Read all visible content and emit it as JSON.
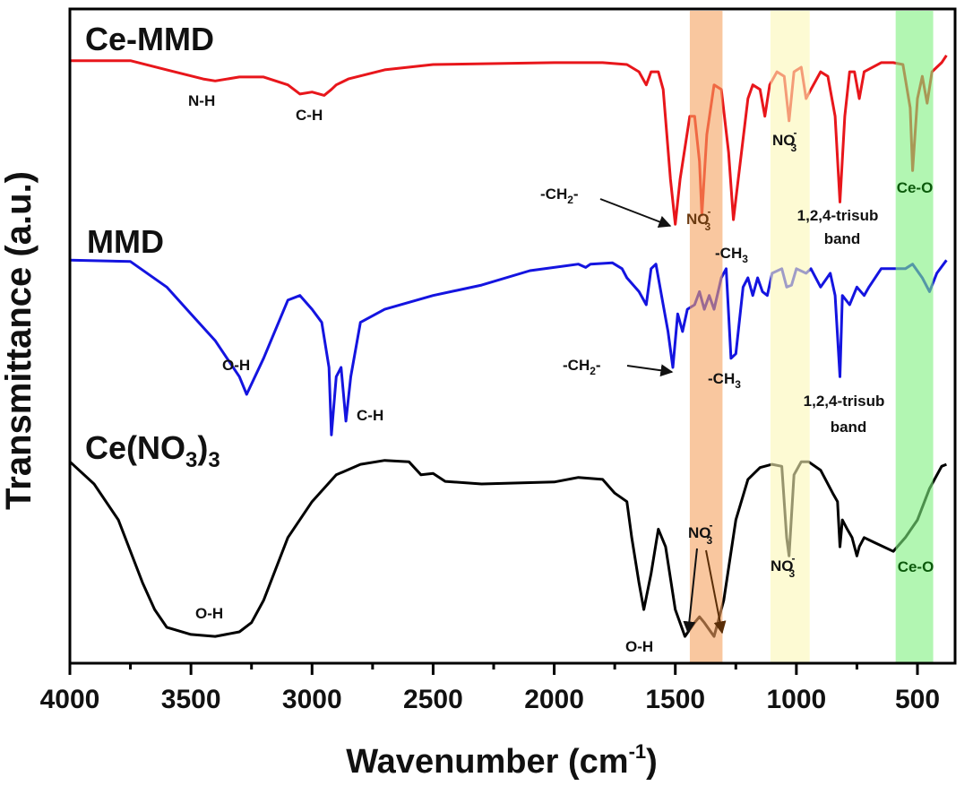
{
  "chart_data": {
    "type": "line",
    "title": "",
    "xlabel": {
      "text": "Wavenumber (cm",
      "sup": "-1",
      "close": ")"
    },
    "ylabel": "Transmittance (a.u.)",
    "xlim": [
      4000,
      350
    ],
    "x_reversed": true,
    "y_ticks_shown": false,
    "grid": false,
    "x_ticks": [
      "4000",
      "3500",
      "3000",
      "2500",
      "2000",
      "1500",
      "1000",
      "500"
    ],
    "highlight_bands": [
      {
        "range": [
          1440,
          1305
        ],
        "color": "#f5a25f"
      },
      {
        "range": [
          1107,
          945
        ],
        "color": "#fbf7b5"
      },
      {
        "range": [
          590,
          435
        ],
        "color": "#7ef07e"
      }
    ],
    "series": [
      {
        "name": "Ce-MMD",
        "color": "#e8161b",
        "points": [
          [
            4000,
            92.1
          ],
          [
            3750,
            92.1
          ],
          [
            3600,
            90.7
          ],
          [
            3450,
            89.3
          ],
          [
            3400,
            89.0
          ],
          [
            3300,
            89.6
          ],
          [
            3200,
            89.6
          ],
          [
            3100,
            88.4
          ],
          [
            3050,
            87.0
          ],
          [
            3000,
            87.3
          ],
          [
            2950,
            86.8
          ],
          [
            2920,
            87.7
          ],
          [
            2900,
            88.4
          ],
          [
            2850,
            89.3
          ],
          [
            2700,
            90.7
          ],
          [
            2500,
            91.5
          ],
          [
            2000,
            91.8
          ],
          [
            1800,
            91.8
          ],
          [
            1700,
            91.5
          ],
          [
            1650,
            90.4
          ],
          [
            1620,
            88.4
          ],
          [
            1600,
            90.4
          ],
          [
            1570,
            90.4
          ],
          [
            1550,
            87.7
          ],
          [
            1520,
            74.0
          ],
          [
            1500,
            67.1
          ],
          [
            1480,
            74.0
          ],
          [
            1440,
            83.6
          ],
          [
            1420,
            83.6
          ],
          [
            1400,
            76.7
          ],
          [
            1390,
            68.5
          ],
          [
            1370,
            80.8
          ],
          [
            1340,
            88.4
          ],
          [
            1310,
            87.7
          ],
          [
            1280,
            78.1
          ],
          [
            1260,
            67.8
          ],
          [
            1240,
            74.0
          ],
          [
            1200,
            86.3
          ],
          [
            1180,
            88.4
          ],
          [
            1150,
            87.7
          ],
          [
            1130,
            83.6
          ],
          [
            1110,
            88.4
          ],
          [
            1080,
            90.4
          ],
          [
            1050,
            89.7
          ],
          [
            1030,
            82.9
          ],
          [
            1010,
            90.4
          ],
          [
            980,
            91.1
          ],
          [
            960,
            86.3
          ],
          [
            940,
            87.7
          ],
          [
            900,
            90.4
          ],
          [
            870,
            89.7
          ],
          [
            840,
            83.6
          ],
          [
            820,
            70.5
          ],
          [
            800,
            83.6
          ],
          [
            780,
            90.4
          ],
          [
            760,
            90.4
          ],
          [
            740,
            86.3
          ],
          [
            720,
            90.4
          ],
          [
            650,
            91.8
          ],
          [
            600,
            91.8
          ],
          [
            560,
            91.5
          ],
          [
            530,
            84.9
          ],
          [
            520,
            75.3
          ],
          [
            500,
            86.3
          ],
          [
            480,
            89.7
          ],
          [
            460,
            85.6
          ],
          [
            440,
            90.4
          ],
          [
            400,
            91.8
          ],
          [
            380,
            92.9
          ]
        ]
      },
      {
        "name": "MMD",
        "color": "#1414e0",
        "points": [
          [
            4000,
            61.6
          ],
          [
            3750,
            61.4
          ],
          [
            3600,
            57.5
          ],
          [
            3500,
            53.4
          ],
          [
            3400,
            49.3
          ],
          [
            3300,
            43.8
          ],
          [
            3270,
            41.1
          ],
          [
            3200,
            46.6
          ],
          [
            3100,
            55.5
          ],
          [
            3050,
            56.2
          ],
          [
            3000,
            54.1
          ],
          [
            2960,
            52.1
          ],
          [
            2930,
            45.2
          ],
          [
            2920,
            34.9
          ],
          [
            2900,
            43.8
          ],
          [
            2880,
            45.2
          ],
          [
            2860,
            37.0
          ],
          [
            2840,
            43.8
          ],
          [
            2800,
            52.1
          ],
          [
            2700,
            54.1
          ],
          [
            2500,
            56.2
          ],
          [
            2300,
            57.8
          ],
          [
            2100,
            60.0
          ],
          [
            1900,
            61.0
          ],
          [
            1870,
            60.5
          ],
          [
            1850,
            61.0
          ],
          [
            1760,
            61.2
          ],
          [
            1720,
            60.3
          ],
          [
            1700,
            58.9
          ],
          [
            1650,
            56.8
          ],
          [
            1620,
            54.8
          ],
          [
            1600,
            60.3
          ],
          [
            1580,
            61.0
          ],
          [
            1550,
            54.8
          ],
          [
            1530,
            50.7
          ],
          [
            1510,
            45.2
          ],
          [
            1490,
            53.4
          ],
          [
            1470,
            50.7
          ],
          [
            1450,
            54.1
          ],
          [
            1420,
            54.8
          ],
          [
            1400,
            56.8
          ],
          [
            1380,
            54.1
          ],
          [
            1360,
            56.2
          ],
          [
            1340,
            54.1
          ],
          [
            1310,
            58.9
          ],
          [
            1290,
            60.3
          ],
          [
            1270,
            46.6
          ],
          [
            1250,
            47.3
          ],
          [
            1220,
            57.5
          ],
          [
            1200,
            58.9
          ],
          [
            1180,
            56.2
          ],
          [
            1160,
            58.9
          ],
          [
            1140,
            56.8
          ],
          [
            1120,
            56.2
          ],
          [
            1100,
            59.6
          ],
          [
            1060,
            60.3
          ],
          [
            1040,
            57.5
          ],
          [
            1020,
            57.8
          ],
          [
            1000,
            60.3
          ],
          [
            960,
            59.6
          ],
          [
            940,
            60.3
          ],
          [
            900,
            57.5
          ],
          [
            860,
            59.6
          ],
          [
            840,
            56.2
          ],
          [
            820,
            43.8
          ],
          [
            810,
            56.2
          ],
          [
            780,
            54.8
          ],
          [
            750,
            57.5
          ],
          [
            720,
            56.2
          ],
          [
            700,
            57.5
          ],
          [
            650,
            60.3
          ],
          [
            600,
            60.3
          ],
          [
            550,
            60.3
          ],
          [
            520,
            61.0
          ],
          [
            480,
            58.9
          ],
          [
            450,
            56.8
          ],
          [
            420,
            59.6
          ],
          [
            380,
            61.6
          ]
        ]
      },
      {
        "name": "Ce(NO3)3",
        "color": "#000000",
        "points": [
          [
            4000,
            30.8
          ],
          [
            3900,
            27.4
          ],
          [
            3800,
            21.9
          ],
          [
            3700,
            12.3
          ],
          [
            3650,
            8.2
          ],
          [
            3600,
            5.5
          ],
          [
            3500,
            4.4
          ],
          [
            3400,
            4.1
          ],
          [
            3300,
            4.8
          ],
          [
            3250,
            6.2
          ],
          [
            3200,
            9.6
          ],
          [
            3100,
            19.2
          ],
          [
            3000,
            24.7
          ],
          [
            2900,
            28.8
          ],
          [
            2800,
            30.4
          ],
          [
            2700,
            31.0
          ],
          [
            2600,
            30.8
          ],
          [
            2550,
            28.8
          ],
          [
            2500,
            29.0
          ],
          [
            2450,
            27.8
          ],
          [
            2300,
            27.4
          ],
          [
            2000,
            27.7
          ],
          [
            1900,
            28.4
          ],
          [
            1800,
            28.1
          ],
          [
            1750,
            26.0
          ],
          [
            1700,
            24.7
          ],
          [
            1680,
            19.2
          ],
          [
            1650,
            12.3
          ],
          [
            1630,
            8.2
          ],
          [
            1600,
            13.7
          ],
          [
            1570,
            20.5
          ],
          [
            1540,
            17.8
          ],
          [
            1500,
            8.2
          ],
          [
            1460,
            4.1
          ],
          [
            1420,
            6.2
          ],
          [
            1400,
            7.1
          ],
          [
            1380,
            6.2
          ],
          [
            1340,
            4.1
          ],
          [
            1300,
            9.6
          ],
          [
            1250,
            21.9
          ],
          [
            1200,
            28.1
          ],
          [
            1150,
            29.9
          ],
          [
            1100,
            30.4
          ],
          [
            1060,
            30.1
          ],
          [
            1040,
            19.2
          ],
          [
            1030,
            16.4
          ],
          [
            1010,
            28.8
          ],
          [
            980,
            30.8
          ],
          [
            950,
            30.8
          ],
          [
            900,
            29.5
          ],
          [
            850,
            26.0
          ],
          [
            830,
            24.7
          ],
          [
            820,
            17.8
          ],
          [
            810,
            21.9
          ],
          [
            790,
            20.5
          ],
          [
            770,
            19.2
          ],
          [
            750,
            16.4
          ],
          [
            740,
            17.8
          ],
          [
            720,
            19.2
          ],
          [
            680,
            18.5
          ],
          [
            600,
            17.1
          ],
          [
            550,
            19.2
          ],
          [
            500,
            21.9
          ],
          [
            450,
            26.7
          ],
          [
            400,
            30.1
          ],
          [
            380,
            30.4
          ]
        ]
      }
    ],
    "series_labels": {
      "ce_mmd": "Ce-MMD",
      "mmd": "MMD",
      "ce_nitrate": {
        "base": "Ce(NO",
        "sub1": "3",
        "close": ")",
        "sub2": "3"
      }
    },
    "annotations": {
      "ce_mmd": {
        "nh": "N-H",
        "ch": "C-H",
        "ch2": {
          "base": "-CH",
          "sub": "2",
          "tail": "-"
        },
        "no3_band": {
          "base": "NO",
          "sub": "3",
          "sup": "-"
        },
        "ch3": {
          "base": "-CH",
          "sub": "3"
        },
        "no3_yellow": {
          "base": "NO",
          "sub": "3",
          "sup": "-"
        },
        "trisub": [
          "1,2,4-trisub",
          "band"
        ],
        "ceo": "Ce-O"
      },
      "mmd": {
        "oh": "O-H",
        "ch": "C-H",
        "ch2": {
          "base": "-CH",
          "sub": "2",
          "tail": "-"
        },
        "ch3": {
          "base": "-CH",
          "sub": "3"
        },
        "trisub": [
          "1,2,4-trisub",
          "band"
        ]
      },
      "ce_nitrate": {
        "oh1": "O-H",
        "oh2": "O-H",
        "no3_band": {
          "base": "NO",
          "sub": "3",
          "sup": "-"
        },
        "no3_yellow": {
          "base": "NO",
          "sub": "3",
          "sup": "-"
        },
        "ceo": "Ce-O"
      }
    },
    "annotation_colors": {
      "no3_band": "#6b3a10",
      "ceo": "#0c5a0c"
    }
  }
}
